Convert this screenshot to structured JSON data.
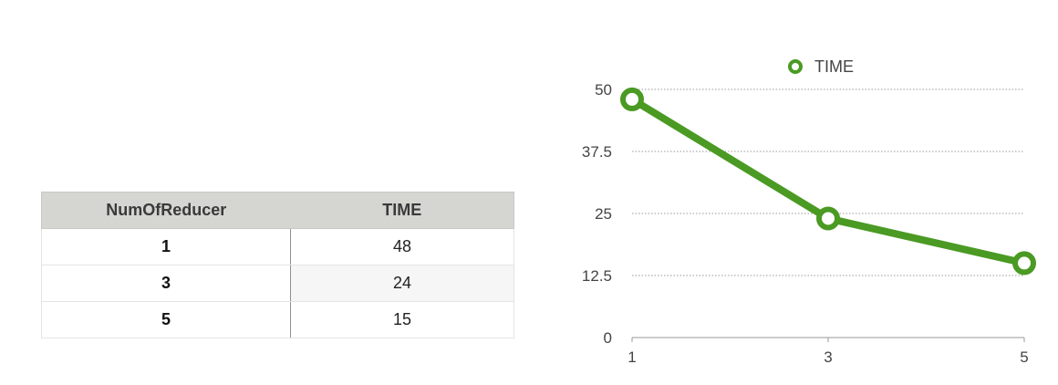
{
  "table": {
    "headers": [
      "NumOfReducer",
      "TIME"
    ],
    "rows": [
      [
        "1",
        "48"
      ],
      [
        "3",
        "24"
      ],
      [
        "5",
        "15"
      ]
    ]
  },
  "chart_data": {
    "type": "line",
    "x": [
      1,
      3,
      5
    ],
    "xticks": [
      "1",
      "3",
      "5"
    ],
    "ylim": [
      0,
      50
    ],
    "yticks": [
      "0",
      "12.5",
      "25",
      "37.5",
      "50"
    ],
    "series": [
      {
        "name": "TIME",
        "values": [
          48,
          24,
          15
        ],
        "color": "#4a9a23"
      }
    ],
    "legend_position": "top-center",
    "grid": "horizontal-dotted",
    "title": "",
    "xlabel": "",
    "ylabel": ""
  }
}
